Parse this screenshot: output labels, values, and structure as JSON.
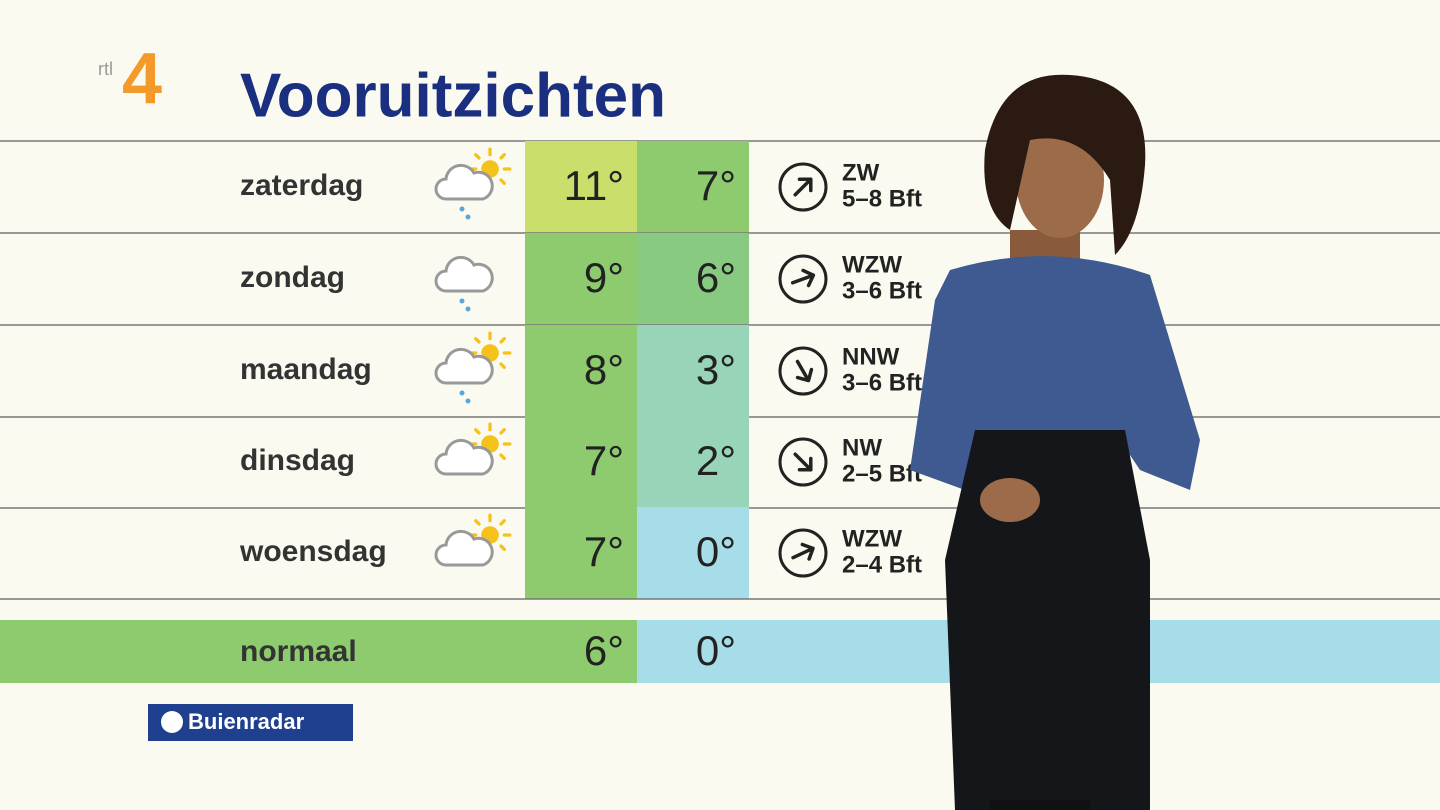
{
  "logo": {
    "text": "rtl",
    "number": "4"
  },
  "header": {
    "title": "Vooruitzichten"
  },
  "forecast": {
    "rows": [
      {
        "day": "zaterdag",
        "max": "11°",
        "min": "7°",
        "wind_direction": "ZW",
        "wind_force": "5–8 Bft"
      },
      {
        "day": "zondag",
        "max": "9°",
        "min": "6°",
        "wind_direction": "WZW",
        "wind_force": "3–6 Bft"
      },
      {
        "day": "maandag",
        "max": "8°",
        "min": "3°",
        "wind_direction": "NNW",
        "wind_force": "3–6 Bft"
      },
      {
        "day": "dinsdag",
        "max": "7°",
        "min": "2°",
        "wind_direction": "NW",
        "wind_force": "2–5 Bft"
      },
      {
        "day": "woensdag",
        "max": "7°",
        "min": "0°",
        "wind_direction": "WZW",
        "wind_force": "2–4 Bft"
      }
    ]
  },
  "normal": {
    "label": "normaal",
    "max": "6°",
    "min": "0°"
  },
  "footer": {
    "brand": "Buienradar"
  }
}
